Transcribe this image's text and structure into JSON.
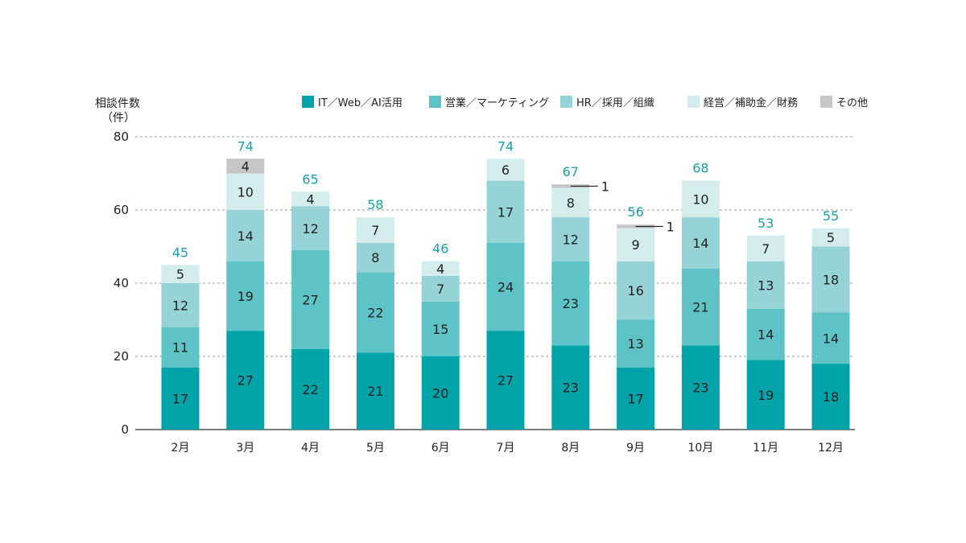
{
  "chart_data": {
    "type": "bar",
    "stacked": true,
    "title": "",
    "ylabel_line1": "相談件数",
    "ylabel_line2": "（件）",
    "ylim": [
      0,
      80
    ],
    "yticks": [
      0,
      20,
      40,
      60,
      80
    ],
    "grid": true,
    "legend_position": "top-right",
    "categories": [
      "2月",
      "3月",
      "4月",
      "5月",
      "6月",
      "7月",
      "8月",
      "9月",
      "10月",
      "11月",
      "12月"
    ],
    "totals": [
      45,
      74,
      65,
      58,
      46,
      74,
      67,
      56,
      68,
      53,
      55
    ],
    "series": [
      {
        "name": "IT／Web／AI活用",
        "color": "#00a4a8",
        "values": [
          17,
          27,
          22,
          21,
          20,
          27,
          23,
          17,
          23,
          19,
          18
        ]
      },
      {
        "name": "営業／マーケティング",
        "color": "#5ec3c6",
        "values": [
          11,
          19,
          27,
          22,
          15,
          24,
          23,
          13,
          21,
          14,
          14
        ]
      },
      {
        "name": "HR／採用／組織",
        "color": "#96d3d6",
        "values": [
          12,
          14,
          12,
          8,
          7,
          17,
          12,
          16,
          14,
          13,
          18
        ]
      },
      {
        "name": "経営／補助金／財務",
        "color": "#d4ecec",
        "values": [
          5,
          10,
          4,
          7,
          4,
          6,
          8,
          9,
          10,
          7,
          5
        ]
      },
      {
        "name": "その他",
        "color": "#c6c6c6",
        "values": [
          0,
          4,
          0,
          0,
          0,
          0,
          1,
          1,
          0,
          0,
          0
        ]
      }
    ]
  }
}
